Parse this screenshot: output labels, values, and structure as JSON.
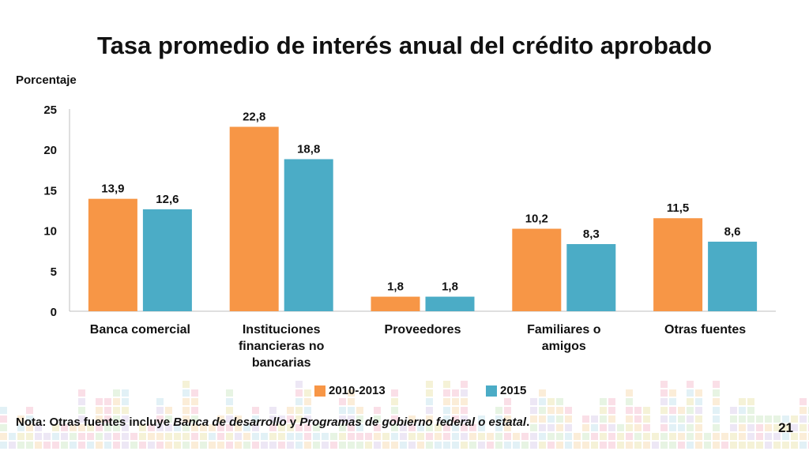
{
  "slide": {
    "title": "Tasa promedio de interés anual del crédito aprobado",
    "page_number": "21",
    "note": {
      "prefix": "Nota: Otras fuentes incluye ",
      "italic1": "Banca de desarrollo",
      "middle": " y ",
      "italic2": "Programas de gobierno federal o estatal",
      "suffix": "."
    }
  },
  "colors": {
    "series_2010_2013": "#F79646",
    "series_2015": "#4BACC6",
    "axis": "#BFBFBF",
    "text": "#111111"
  },
  "chart_data": {
    "type": "bar",
    "title": "Tasa promedio de interés anual del crédito aprobado",
    "ylabel": "Porcentaje",
    "xlabel": "",
    "ylim": [
      0,
      25
    ],
    "yticks": [
      0,
      5,
      10,
      15,
      20,
      25
    ],
    "grid": false,
    "legend_position": "bottom",
    "categories": [
      [
        "Banca comercial"
      ],
      [
        "Instituciones",
        "financieras no",
        "bancarias"
      ],
      [
        "Proveedores"
      ],
      [
        "Familiares o",
        "amigos"
      ],
      [
        "Otras fuentes"
      ]
    ],
    "series": [
      {
        "name": "2010-2013",
        "values": [
          13.9,
          22.8,
          1.8,
          10.2,
          11.5
        ],
        "labels": [
          "13,9",
          "22,8",
          "1,8",
          "10,2",
          "11,5"
        ]
      },
      {
        "name": "2015",
        "values": [
          12.6,
          18.8,
          1.8,
          8.3,
          8.6
        ],
        "labels": [
          "12,6",
          "18,8",
          "1,8",
          "8,3",
          "8,6"
        ]
      }
    ]
  }
}
